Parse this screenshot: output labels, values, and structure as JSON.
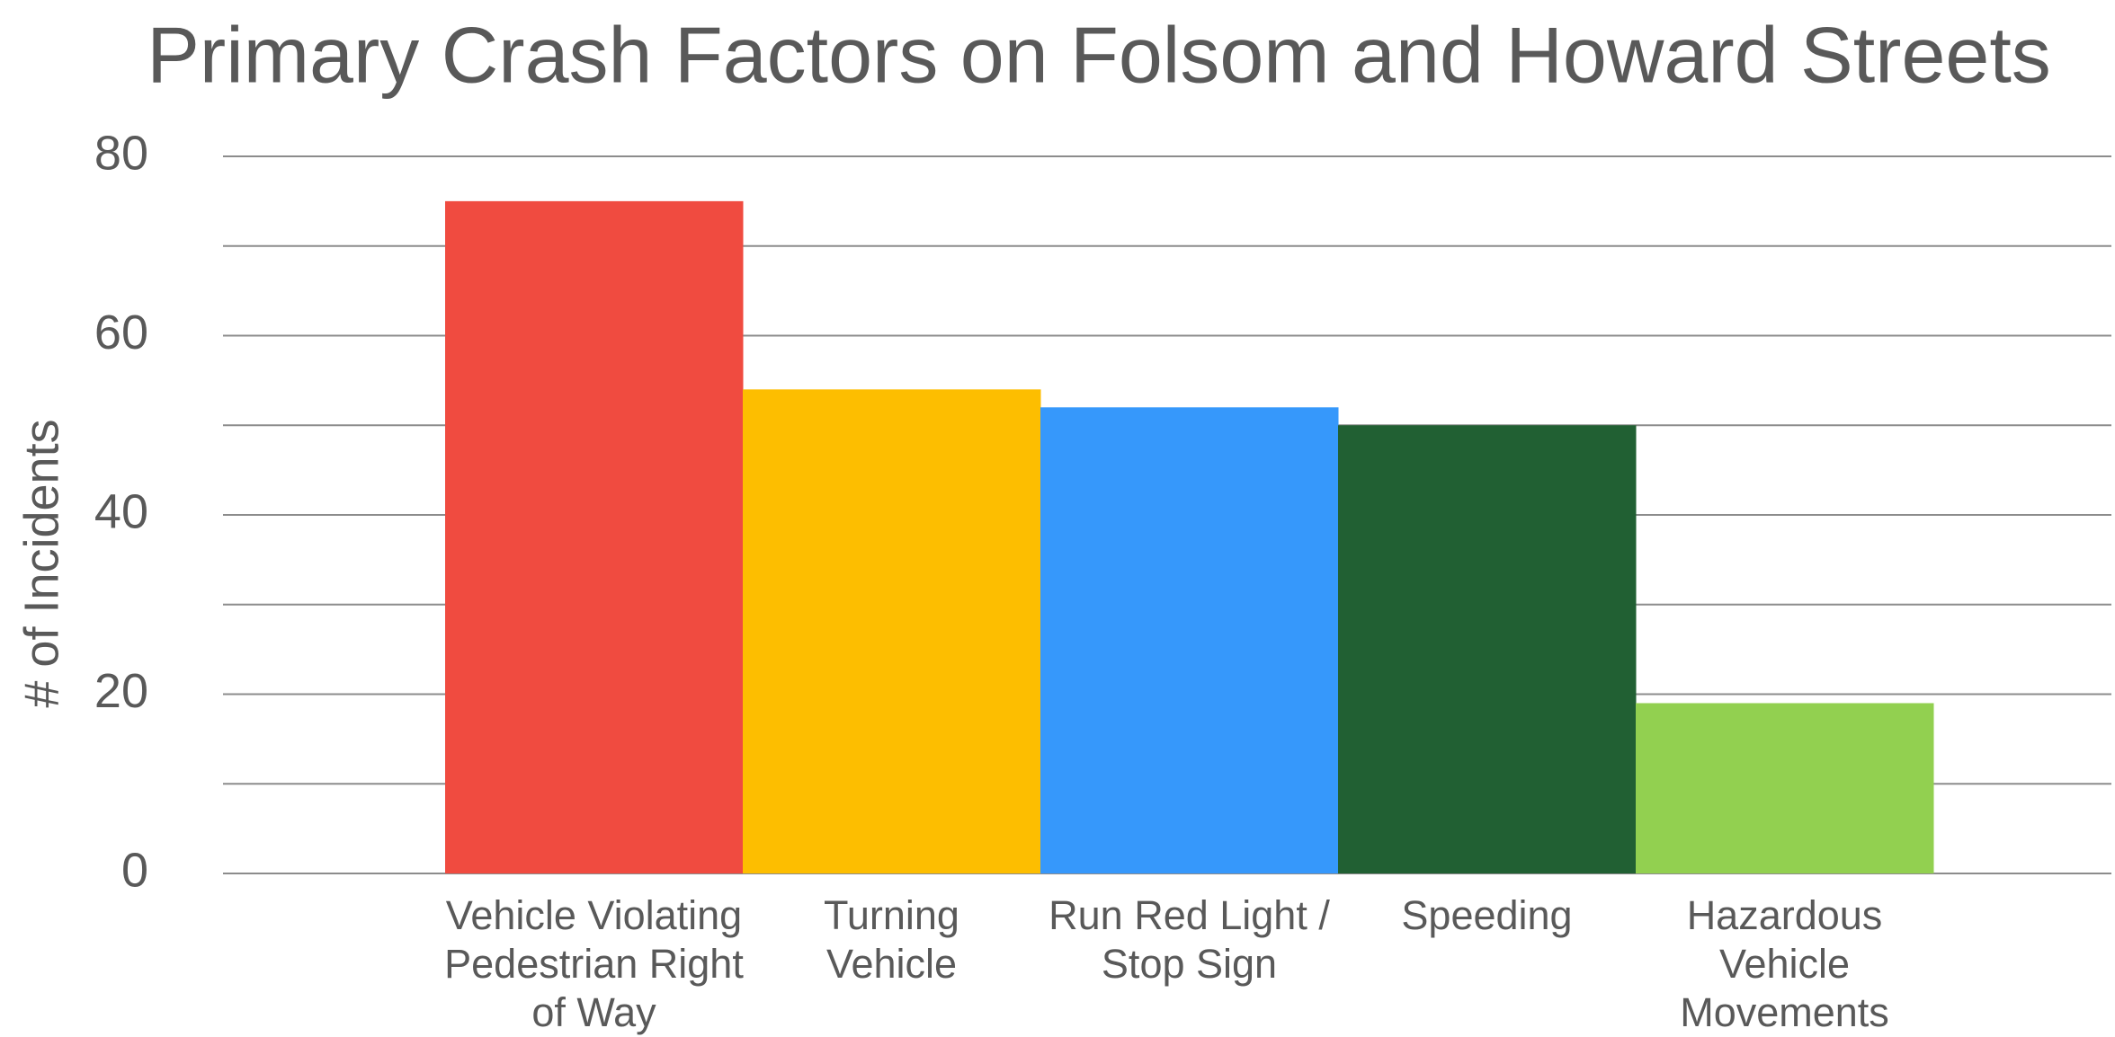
{
  "chart_data": {
    "type": "bar",
    "title": "Primary Crash Factors on Folsom and Howard Streets",
    "y_label": "# of Incidents",
    "categories": [
      "Vehicle Violating\nPedestrian Right\nof Way",
      "Turning\nVehicle",
      "Run Red Light /\nStop Sign",
      "Speeding",
      "Hazardous\nVehicle\nMovements"
    ],
    "values": [
      75,
      54,
      52,
      50,
      19
    ],
    "colors": [
      "#f04b40",
      "#fdbe00",
      "#3698fb",
      "#216033",
      "#92d050"
    ],
    "ylim": [
      0,
      80
    ],
    "yticks": [
      0,
      20,
      40,
      60,
      80
    ],
    "minor_yticks": [
      10,
      30,
      50,
      70
    ],
    "grid": true
  }
}
